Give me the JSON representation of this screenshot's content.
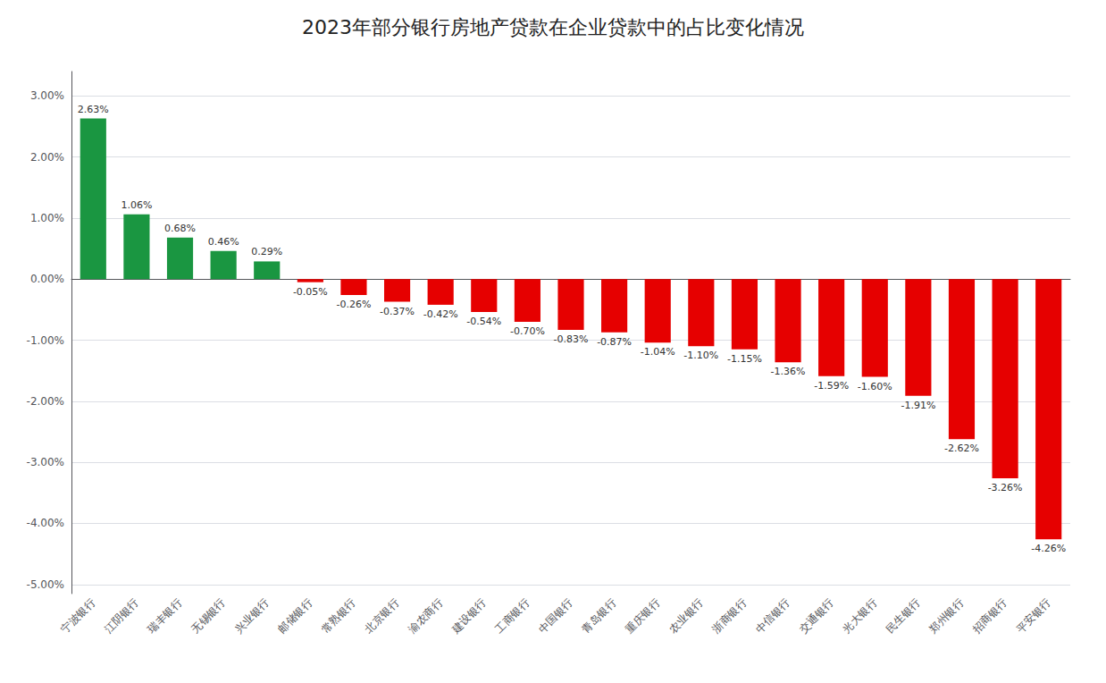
{
  "chart_data": {
    "type": "bar",
    "title": "2023年部分银行房地产贷款在企业贷款中的占比变化情况",
    "categories": [
      "宁波银行",
      "江阴银行",
      "瑞丰银行",
      "无锡银行",
      "兴业银行",
      "邮储银行",
      "常熟银行",
      "北京银行",
      "渝农商行",
      "建设银行",
      "工商银行",
      "中国银行",
      "青岛银行",
      "重庆银行",
      "农业银行",
      "浙商银行",
      "中信银行",
      "交通银行",
      "光大银行",
      "民生银行",
      "郑州银行",
      "招商银行",
      "平安银行"
    ],
    "values": [
      2.63,
      1.06,
      0.68,
      0.46,
      0.29,
      -0.05,
      -0.26,
      -0.37,
      -0.42,
      -0.54,
      -0.7,
      -0.83,
      -0.87,
      -1.04,
      -1.1,
      -1.15,
      -1.36,
      -1.59,
      -1.6,
      -1.91,
      -2.62,
      -3.26,
      -4.26
    ],
    "value_labels": [
      "2.63%",
      "1.06%",
      "0.68%",
      "0.46%",
      "0.29%",
      "-0.05%",
      "-0.26%",
      "-0.37%",
      "-0.42%",
      "-0.54%",
      "-0.70%",
      "-0.83%",
      "-0.87%",
      "-1.04%",
      "-1.10%",
      "-1.15%",
      "-1.36%",
      "-1.59%",
      "-1.60%",
      "-1.91%",
      "-2.62%",
      "-3.26%",
      "-4.26%"
    ],
    "colors": [
      "#1a9641",
      "#1a9641",
      "#1a9641",
      "#1a9641",
      "#1a9641",
      "#e60000",
      "#e60000",
      "#e60000",
      "#e60000",
      "#e60000",
      "#e60000",
      "#e60000",
      "#e60000",
      "#e60000",
      "#e60000",
      "#e60000",
      "#e60000",
      "#e60000",
      "#e60000",
      "#e60000",
      "#e60000",
      "#e60000",
      "#e60000"
    ],
    "ylim": [
      -5.15,
      3.4
    ],
    "yticks": [
      {
        "value": -5.0,
        "label": "-5.00%"
      },
      {
        "value": -4.0,
        "label": "-4.00%"
      },
      {
        "value": -3.0,
        "label": "-3.00%"
      },
      {
        "value": -2.0,
        "label": "-2.00%"
      },
      {
        "value": -1.0,
        "label": "-1.00%"
      },
      {
        "value": 0.0,
        "label": "0.00%"
      },
      {
        "value": 1.0,
        "label": "1.00%"
      },
      {
        "value": 2.0,
        "label": "2.00%"
      },
      {
        "value": 3.0,
        "label": "3.00%"
      }
    ],
    "grid": true,
    "data_labels": true
  }
}
